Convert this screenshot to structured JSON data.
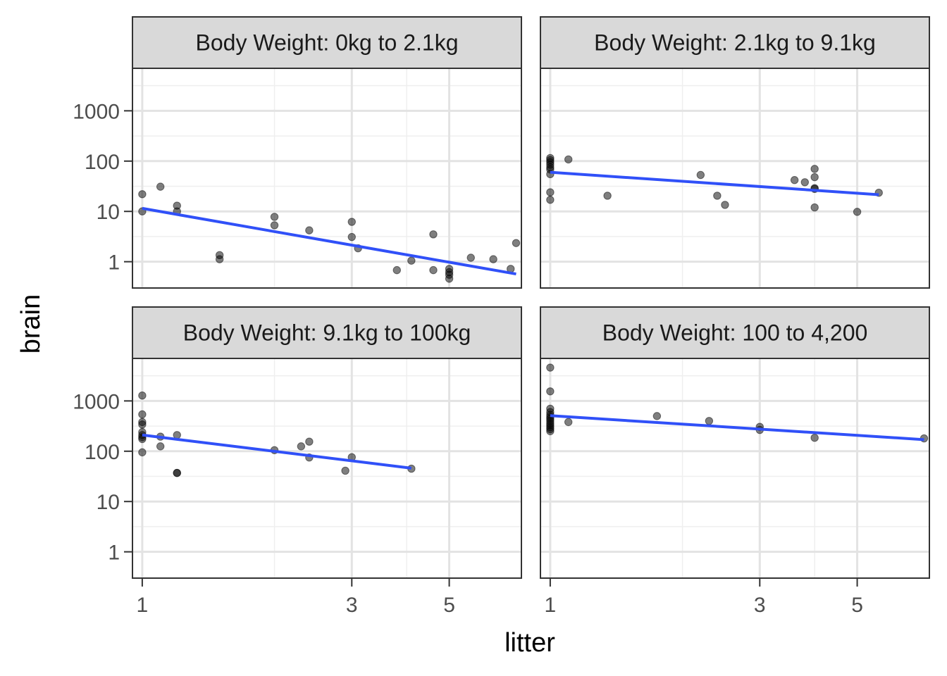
{
  "chart_data": {
    "type": "scatter",
    "facet_layout": "2x2",
    "xlabel": "litter",
    "ylabel": "brain",
    "x_scale": "log10",
    "y_scale": "log10",
    "xlim": [
      0.95,
      7.3
    ],
    "ylim": [
      0.3,
      7000
    ],
    "x_ticks": [
      1,
      3,
      5
    ],
    "x_tick_labels": [
      "1",
      "3",
      "5"
    ],
    "y_ticks": [
      1,
      10,
      100,
      1000
    ],
    "y_tick_labels": [
      "1",
      "10",
      "100",
      "1000"
    ],
    "grid": true,
    "point_color": "#000000",
    "point_alpha": 0.5,
    "line_color": "#3050f8",
    "strip_fill": "#d9d9d9",
    "panels": [
      {
        "title": "Body Weight: 0kg to 2.1kg",
        "points": [
          [
            1.0,
            22
          ],
          [
            1.0,
            10
          ],
          [
            1.1,
            31
          ],
          [
            1.2,
            13
          ],
          [
            1.2,
            10
          ],
          [
            1.5,
            1.35
          ],
          [
            1.5,
            1.12
          ],
          [
            2.0,
            7.8
          ],
          [
            2.0,
            5.3
          ],
          [
            2.4,
            4.2
          ],
          [
            3.0,
            6.2
          ],
          [
            3.0,
            3.1
          ],
          [
            3.1,
            1.85
          ],
          [
            3.8,
            0.68
          ],
          [
            4.1,
            1.05
          ],
          [
            4.6,
            3.5
          ],
          [
            4.6,
            0.68
          ],
          [
            5.0,
            0.72
          ],
          [
            5.0,
            0.62
          ],
          [
            5.0,
            0.55
          ],
          [
            5.0,
            0.46
          ],
          [
            5.6,
            1.2
          ],
          [
            6.3,
            1.12
          ],
          [
            6.9,
            0.72
          ],
          [
            7.1,
            2.35
          ]
        ],
        "fit": [
          [
            1.0,
            11.5
          ],
          [
            7.1,
            0.57
          ]
        ]
      },
      {
        "title": "Body Weight: 2.1kg to 9.1kg",
        "points": [
          [
            1.0,
            115
          ],
          [
            1.0,
            105
          ],
          [
            1.0,
            95
          ],
          [
            1.0,
            85
          ],
          [
            1.0,
            75
          ],
          [
            1.0,
            68
          ],
          [
            1.0,
            55
          ],
          [
            1.0,
            24
          ],
          [
            1.0,
            17
          ],
          [
            1.1,
            108
          ],
          [
            1.35,
            20.5
          ],
          [
            2.2,
            53
          ],
          [
            2.4,
            20.5
          ],
          [
            2.5,
            13.5
          ],
          [
            3.6,
            42
          ],
          [
            3.8,
            38
          ],
          [
            4.0,
            70
          ],
          [
            4.0,
            48
          ],
          [
            4.0,
            29
          ],
          [
            4.0,
            28
          ],
          [
            4.0,
            12
          ],
          [
            5.0,
            9.8
          ],
          [
            5.6,
            23.5
          ]
        ],
        "fit": [
          [
            1.0,
            60
          ],
          [
            5.6,
            21.5
          ]
        ]
      },
      {
        "title": "Body Weight: 9.1kg to 100kg",
        "points": [
          [
            1.0,
            1280
          ],
          [
            1.0,
            540
          ],
          [
            1.0,
            380
          ],
          [
            1.0,
            340
          ],
          [
            1.0,
            240
          ],
          [
            1.0,
            210
          ],
          [
            1.0,
            190
          ],
          [
            1.0,
            175
          ],
          [
            1.0,
            95
          ],
          [
            1.1,
            195
          ],
          [
            1.1,
            125
          ],
          [
            1.2,
            210
          ],
          [
            1.2,
            37
          ],
          [
            1.2,
            37
          ],
          [
            2.0,
            105
          ],
          [
            2.3,
            125
          ],
          [
            2.4,
            155
          ],
          [
            2.4,
            75
          ],
          [
            2.9,
            41
          ],
          [
            3.0,
            76
          ],
          [
            4.1,
            45
          ]
        ],
        "fit": [
          [
            1.0,
            210
          ],
          [
            4.1,
            46
          ]
        ]
      },
      {
        "title": "Body Weight: 100 to 4,200",
        "points": [
          [
            1.0,
            4600
          ],
          [
            1.0,
            1550
          ],
          [
            1.0,
            700
          ],
          [
            1.0,
            600
          ],
          [
            1.0,
            530
          ],
          [
            1.0,
            480
          ],
          [
            1.0,
            440
          ],
          [
            1.0,
            400
          ],
          [
            1.0,
            360
          ],
          [
            1.0,
            330
          ],
          [
            1.0,
            300
          ],
          [
            1.0,
            275
          ],
          [
            1.0,
            250
          ],
          [
            1.1,
            380
          ],
          [
            1.75,
            500
          ],
          [
            2.3,
            400
          ],
          [
            3.0,
            305
          ],
          [
            3.0,
            265
          ],
          [
            4.0,
            185
          ],
          [
            7.1,
            180
          ]
        ],
        "fit": [
          [
            1.0,
            510
          ],
          [
            7.1,
            170
          ]
        ]
      }
    ]
  }
}
